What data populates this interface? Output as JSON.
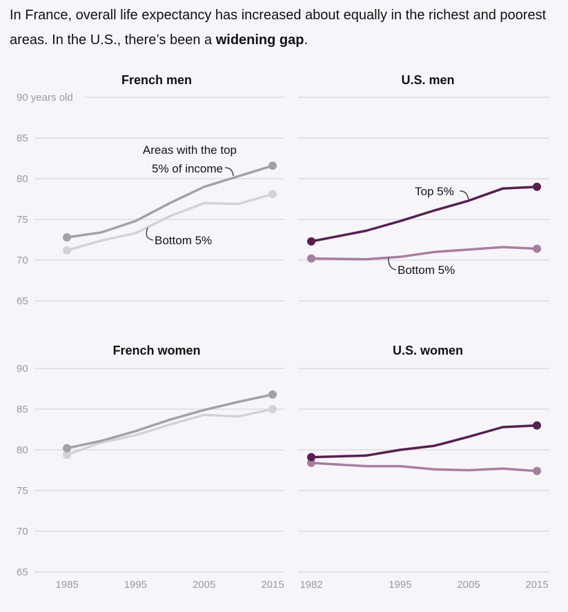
{
  "headline": {
    "part1": "In France, overall life expectancy has increased about equally in the richest and poorest areas. In the U.S., there’s been a ",
    "emphasis": "widening gap",
    "part2": "."
  },
  "colors": {
    "background": "#f7f5f9",
    "france_top": "#a3a1a4",
    "france_bottom": "#d4d2d5",
    "us_top": "#56204f",
    "us_bottom": "#a67fa0",
    "grid": "#dedbe0",
    "tick_text": "#9a9a9a"
  },
  "chart_data": [
    {
      "type": "line",
      "id": "french-men",
      "title": "French men",
      "ylim": [
        65,
        90
      ],
      "y_ticks": [
        "90 years old",
        "85",
        "80",
        "75",
        "70",
        "65"
      ],
      "xlim": [
        1985,
        2015
      ],
      "x_ticks": [],
      "grid": true,
      "series": [
        {
          "name": "Areas with the top 5% of income",
          "key": "top",
          "x": [
            1985,
            1990,
            1995,
            2000,
            2005,
            2010,
            2015
          ],
          "y": [
            72.8,
            73.4,
            74.8,
            77.0,
            79.0,
            80.3,
            81.6
          ]
        },
        {
          "name": "Bottom 5%",
          "key": "bottom",
          "x": [
            1985,
            1990,
            1995,
            2000,
            2005,
            2010,
            2015
          ],
          "y": [
            71.2,
            72.4,
            73.3,
            75.4,
            77.0,
            76.9,
            78.1
          ]
        }
      ],
      "annotations": [
        {
          "line1": "Areas with the top",
          "line2": "5% of income"
        },
        {
          "line1": "Bottom 5%"
        }
      ]
    },
    {
      "type": "line",
      "id": "us-men",
      "title": "U.S. men",
      "ylim": [
        65,
        90
      ],
      "y_ticks": [],
      "xlim": [
        1982,
        2015
      ],
      "x_ticks": [],
      "grid": true,
      "series": [
        {
          "name": "Top 5%",
          "key": "top",
          "x": [
            1982,
            1990,
            1995,
            2000,
            2005,
            2010,
            2015
          ],
          "y": [
            72.3,
            73.6,
            74.8,
            76.1,
            77.3,
            78.8,
            79.0
          ]
        },
        {
          "name": "Bottom 5%",
          "key": "bottom",
          "x": [
            1982,
            1990,
            1995,
            2000,
            2005,
            2010,
            2015
          ],
          "y": [
            70.2,
            70.1,
            70.4,
            71.0,
            71.3,
            71.6,
            71.4
          ]
        }
      ],
      "annotations": [
        {
          "line1": "Top 5%"
        },
        {
          "line1": "Bottom 5%"
        }
      ]
    },
    {
      "type": "line",
      "id": "french-women",
      "title": "French women",
      "ylim": [
        65,
        90
      ],
      "y_ticks": [
        "90",
        "85",
        "80",
        "75",
        "70",
        "65"
      ],
      "xlim": [
        1985,
        2015
      ],
      "x_ticks": [
        "1985",
        "1995",
        "2005",
        "2015"
      ],
      "grid": true,
      "series": [
        {
          "name": "",
          "key": "top",
          "x": [
            1985,
            1990,
            1995,
            2000,
            2005,
            2010,
            2015
          ],
          "y": [
            80.2,
            81.1,
            82.3,
            83.7,
            84.9,
            85.9,
            86.8
          ]
        },
        {
          "name": "",
          "key": "bottom",
          "x": [
            1985,
            1990,
            1995,
            2000,
            2005,
            2010,
            2015
          ],
          "y": [
            79.4,
            80.9,
            81.8,
            83.1,
            84.3,
            84.1,
            85.0
          ]
        }
      ],
      "annotations": []
    },
    {
      "type": "line",
      "id": "us-women",
      "title": "U.S. women",
      "ylim": [
        65,
        90
      ],
      "y_ticks": [],
      "xlim": [
        1982,
        2015
      ],
      "x_ticks": [
        "1982",
        "1995",
        "2005",
        "2015"
      ],
      "grid": true,
      "series": [
        {
          "name": "",
          "key": "top",
          "x": [
            1982,
            1990,
            1995,
            2000,
            2005,
            2010,
            2015
          ],
          "y": [
            79.1,
            79.3,
            80.0,
            80.5,
            81.6,
            82.8,
            83.0
          ]
        },
        {
          "name": "",
          "key": "bottom",
          "x": [
            1982,
            1990,
            1995,
            2000,
            2005,
            2010,
            2015
          ],
          "y": [
            78.4,
            78.0,
            78.0,
            77.6,
            77.5,
            77.7,
            77.4
          ]
        }
      ],
      "annotations": []
    }
  ]
}
